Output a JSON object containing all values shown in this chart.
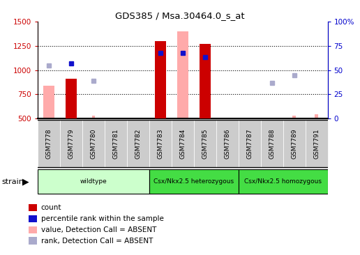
{
  "title": "GDS385 / Msa.30464.0_s_at",
  "samples": [
    "GSM7778",
    "GSM7779",
    "GSM7780",
    "GSM7781",
    "GSM7782",
    "GSM7783",
    "GSM7784",
    "GSM7785",
    "GSM7786",
    "GSM7787",
    "GSM7788",
    "GSM7789",
    "GSM7791"
  ],
  "groups": [
    {
      "label": "wildtype",
      "color": "#ccffcc",
      "start": 0,
      "end": 5
    },
    {
      "label": "Csx/Nkx2.5 heterozygous",
      "color": "#44dd44",
      "start": 5,
      "end": 9
    },
    {
      "label": "Csx/Nkx2.5 homozygous",
      "color": "#44dd44",
      "start": 9,
      "end": 13
    }
  ],
  "count_values": [
    null,
    910,
    null,
    null,
    null,
    1300,
    null,
    1270,
    null,
    null,
    null,
    null,
    null
  ],
  "count_absent_values": [
    840,
    null,
    null,
    null,
    null,
    null,
    1400,
    null,
    null,
    null,
    null,
    null,
    null
  ],
  "percentile_values": [
    null,
    1070,
    null,
    null,
    null,
    1175,
    1175,
    1135,
    null,
    null,
    null,
    null,
    null
  ],
  "percentile_absent_values": [
    1050,
    null,
    890,
    null,
    null,
    null,
    null,
    null,
    null,
    null,
    870,
    950,
    null
  ],
  "small_absent_bar": [
    null,
    null,
    530,
    null,
    null,
    null,
    null,
    null,
    null,
    510,
    null,
    530,
    545
  ],
  "ylim": [
    500,
    1500
  ],
  "y2lim": [
    0,
    100
  ],
  "yticks": [
    500,
    750,
    1000,
    1250,
    1500
  ],
  "y2ticks_vals": [
    0,
    25,
    50,
    75,
    100
  ],
  "y2ticks_labels": [
    "0",
    "25",
    "50",
    "75",
    "100%"
  ],
  "bar_color": "#cc0000",
  "bar_absent_color": "#ffaaaa",
  "dot_color": "#1111cc",
  "dot_absent_color": "#aaaacc",
  "left_axis_color": "#cc0000",
  "right_axis_color": "#0000cc",
  "grid_color": "black",
  "sample_box_color": "#cccccc",
  "legend_items": [
    {
      "color": "#cc0000",
      "label": "count"
    },
    {
      "color": "#1111cc",
      "label": "percentile rank within the sample"
    },
    {
      "color": "#ffaaaa",
      "label": "value, Detection Call = ABSENT"
    },
    {
      "color": "#aaaacc",
      "label": "rank, Detection Call = ABSENT"
    }
  ]
}
